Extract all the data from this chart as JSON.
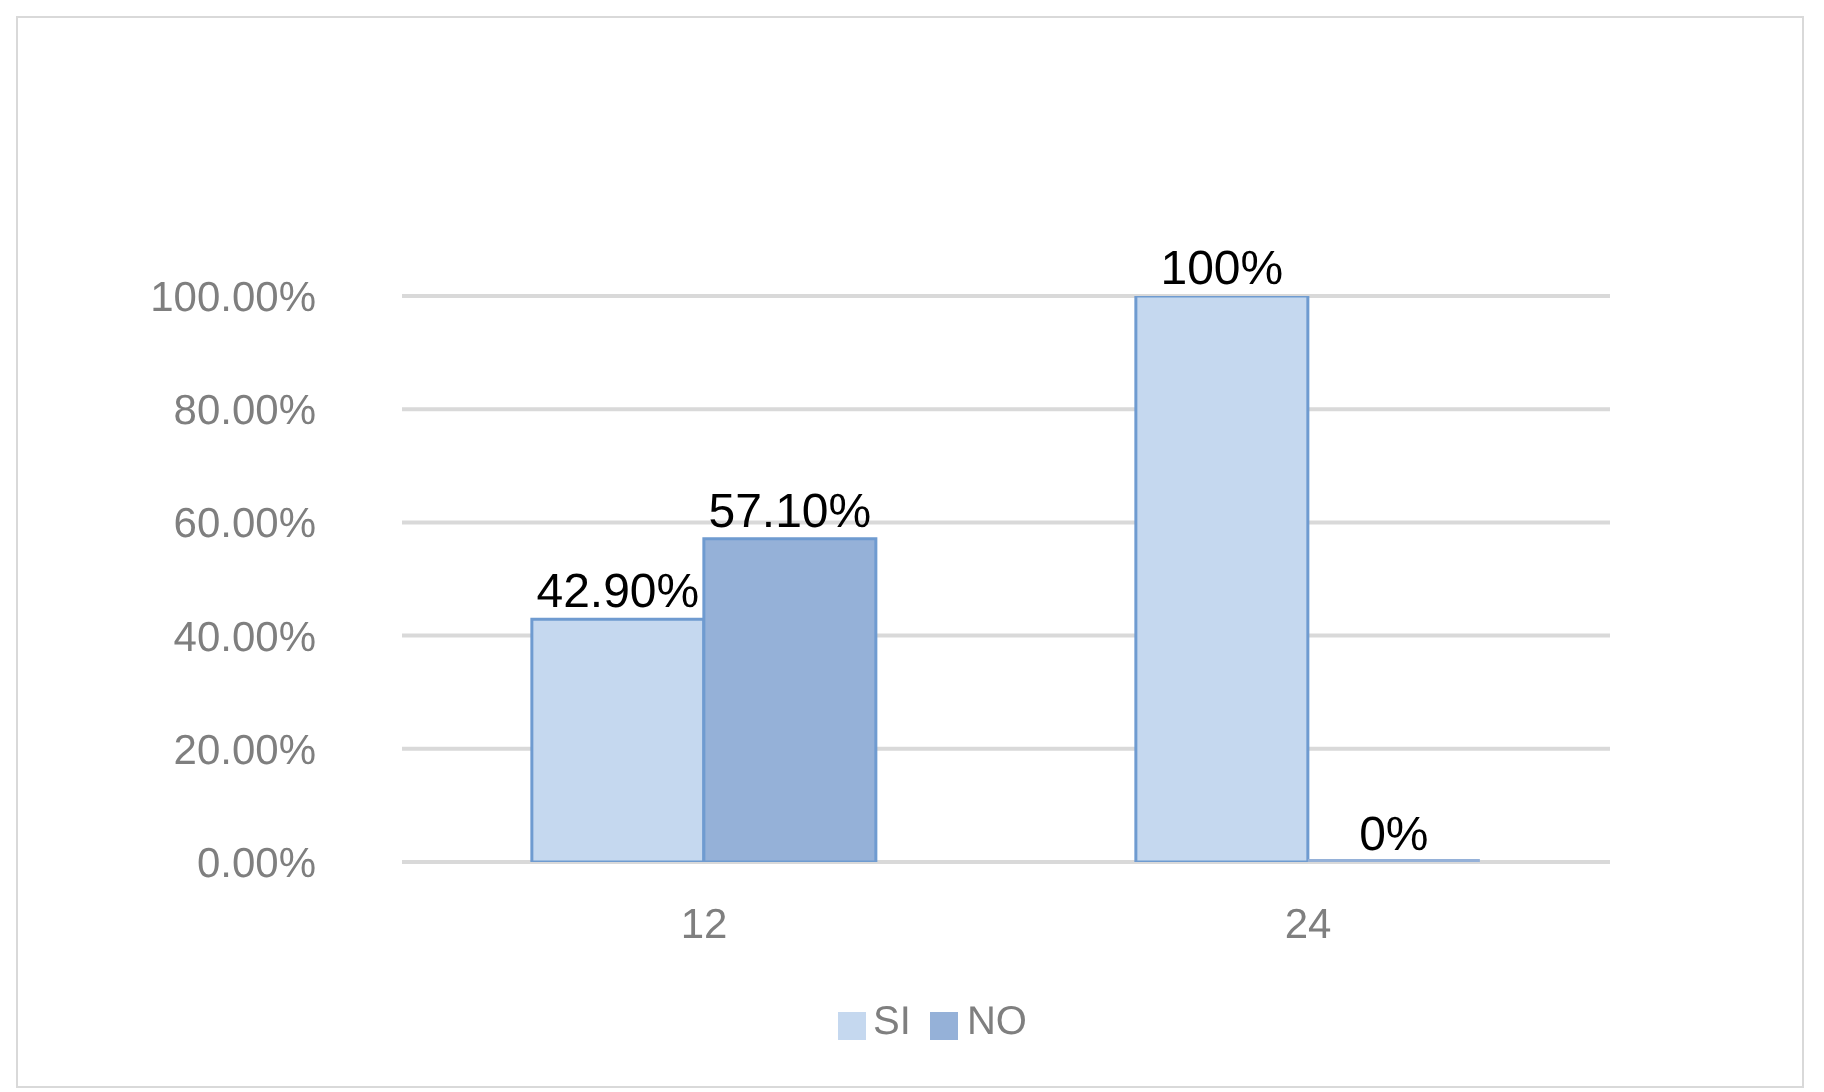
{
  "chart_data": {
    "type": "bar",
    "categories": [
      "12",
      "24"
    ],
    "series": [
      {
        "name": "SI",
        "color": "#c5d8ef",
        "values": [
          42.9,
          100
        ],
        "value_labels": [
          "42.90%",
          "100%"
        ]
      },
      {
        "name": "NO",
        "color": "#95b1d8",
        "values": [
          57.1,
          0
        ],
        "value_labels": [
          "57.10%",
          "0%"
        ]
      }
    ],
    "ylim": [
      0,
      100
    ],
    "yticks": [
      {
        "value": 0,
        "label": "0.00%"
      },
      {
        "value": 20,
        "label": "20.00%"
      },
      {
        "value": 40,
        "label": "40.00%"
      },
      {
        "value": 60,
        "label": "60.00%"
      },
      {
        "value": 80,
        "label": "80.00%"
      },
      {
        "value": 100,
        "label": "100.00%"
      }
    ],
    "grid": "y",
    "legend": "bottom"
  }
}
